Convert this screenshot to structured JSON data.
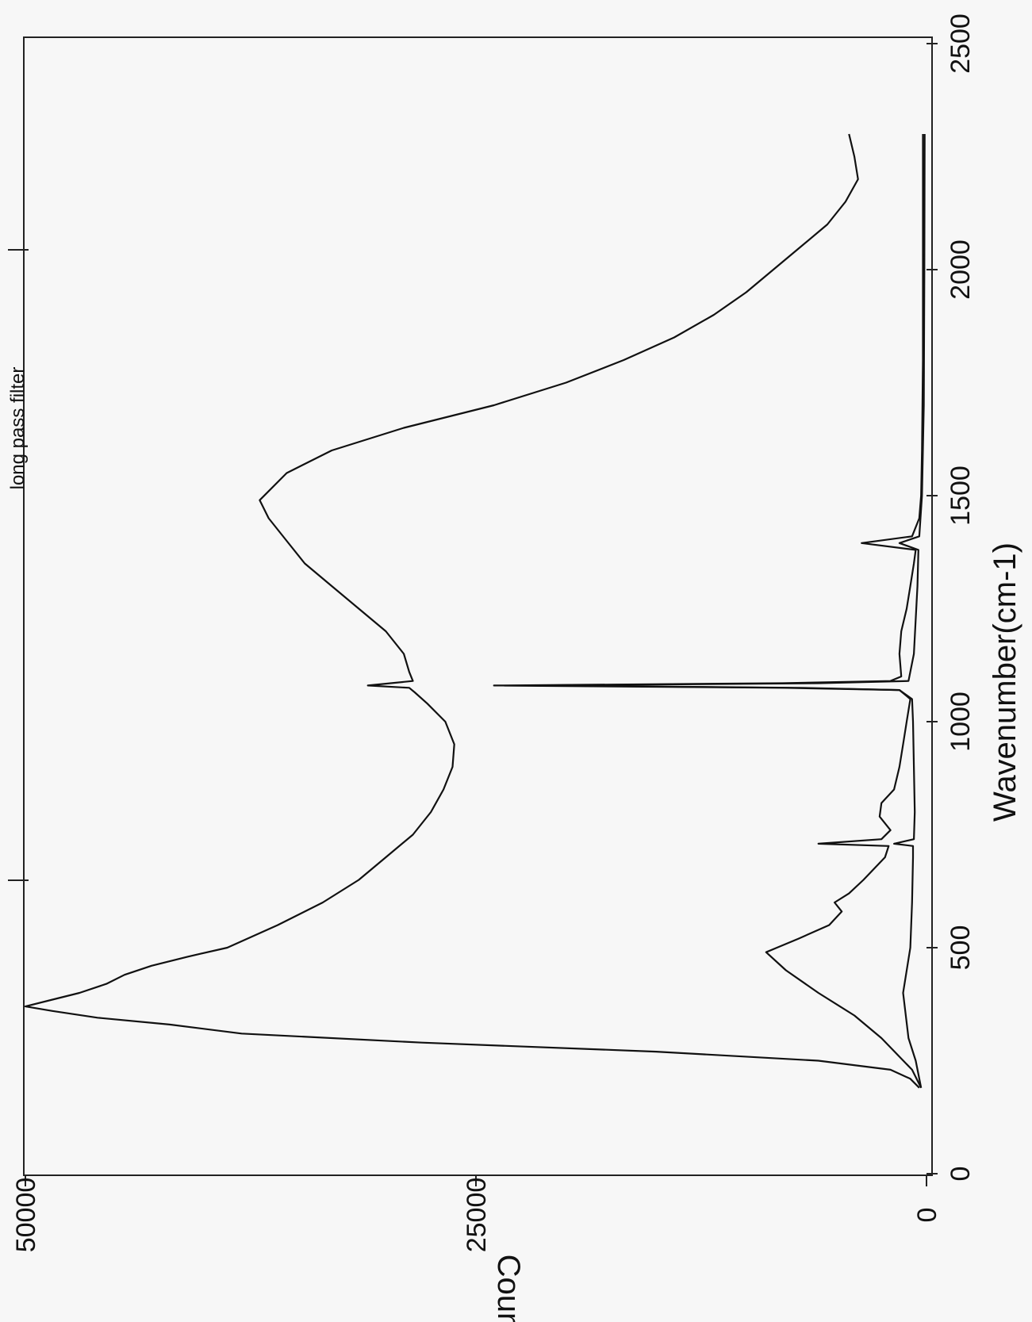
{
  "chart_data": {
    "type": "line",
    "orientation": "rotated-90",
    "xlabel": "Wavenumber(cm-1)",
    "ylabel": "Counts",
    "xlim": [
      0,
      2500
    ],
    "ylim": [
      0,
      50000
    ],
    "x_ticks": [
      "0",
      "500",
      "1000",
      "1500",
      "2000",
      "2500"
    ],
    "y_ticks": [
      "0",
      "25000",
      "50000"
    ],
    "annotations": [
      "long pass filter"
    ],
    "grid": false,
    "series": [
      {
        "points": [
          [
            190,
            400
          ],
          [
            210,
            900
          ],
          [
            230,
            2000
          ],
          [
            250,
            6000
          ],
          [
            270,
            15000
          ],
          [
            290,
            28000
          ],
          [
            310,
            38000
          ],
          [
            330,
            42000
          ],
          [
            345,
            46000
          ],
          [
            360,
            48500
          ],
          [
            370,
            50000
          ],
          [
            385,
            48500
          ],
          [
            400,
            47000
          ],
          [
            420,
            45500
          ],
          [
            440,
            44500
          ],
          [
            460,
            43000
          ],
          [
            480,
            41000
          ],
          [
            500,
            38800
          ],
          [
            550,
            36000
          ],
          [
            600,
            33500
          ],
          [
            650,
            31500
          ],
          [
            700,
            30000
          ],
          [
            750,
            28500
          ],
          [
            800,
            27500
          ],
          [
            850,
            26800
          ],
          [
            900,
            26300
          ],
          [
            950,
            26200
          ],
          [
            1000,
            26700
          ],
          [
            1040,
            27700
          ],
          [
            1065,
            28400
          ],
          [
            1075,
            28700
          ],
          [
            1080,
            31000
          ],
          [
            1090,
            28500
          ],
          [
            1110,
            28700
          ],
          [
            1150,
            29000
          ],
          [
            1200,
            30000
          ],
          [
            1250,
            31500
          ],
          [
            1300,
            33000
          ],
          [
            1350,
            34500
          ],
          [
            1400,
            35500
          ],
          [
            1450,
            36500
          ],
          [
            1490,
            37000
          ],
          [
            1550,
            35500
          ],
          [
            1600,
            33000
          ],
          [
            1650,
            29000
          ],
          [
            1700,
            24000
          ],
          [
            1750,
            20000
          ],
          [
            1800,
            16800
          ],
          [
            1850,
            14000
          ],
          [
            1900,
            11800
          ],
          [
            1950,
            10000
          ],
          [
            2000,
            8500
          ],
          [
            2050,
            7000
          ],
          [
            2100,
            5500
          ],
          [
            2150,
            4500
          ],
          [
            2200,
            3800
          ],
          [
            2250,
            4000
          ],
          [
            2300,
            4300
          ]
        ]
      },
      {
        "points": [
          [
            190,
            300
          ],
          [
            230,
            800
          ],
          [
            300,
            2500
          ],
          [
            350,
            4000
          ],
          [
            400,
            6000
          ],
          [
            450,
            7800
          ],
          [
            490,
            8900
          ],
          [
            500,
            8300
          ],
          [
            520,
            7100
          ],
          [
            550,
            5400
          ],
          [
            580,
            4700
          ],
          [
            600,
            5100
          ],
          [
            620,
            4300
          ],
          [
            650,
            3500
          ],
          [
            700,
            2300
          ],
          [
            725,
            2100
          ],
          [
            730,
            6000
          ],
          [
            740,
            2500
          ],
          [
            760,
            2000
          ],
          [
            790,
            2600
          ],
          [
            820,
            2500
          ],
          [
            850,
            1800
          ],
          [
            900,
            1500
          ],
          [
            950,
            1300
          ],
          [
            1000,
            1100
          ],
          [
            1050,
            900
          ],
          [
            1070,
            1500
          ],
          [
            1075,
            8000
          ],
          [
            1080,
            24000
          ],
          [
            1085,
            8000
          ],
          [
            1090,
            2000
          ],
          [
            1100,
            1400
          ],
          [
            1150,
            1500
          ],
          [
            1200,
            1400
          ],
          [
            1250,
            1100
          ],
          [
            1300,
            900
          ],
          [
            1350,
            700
          ],
          [
            1380,
            600
          ],
          [
            1395,
            3600
          ],
          [
            1410,
            800
          ],
          [
            1450,
            400
          ],
          [
            1500,
            300
          ],
          [
            1600,
            250
          ],
          [
            1800,
            200
          ],
          [
            2000,
            200
          ],
          [
            2200,
            200
          ],
          [
            2300,
            200
          ]
        ]
      },
      {
        "points": [
          [
            190,
            300
          ],
          [
            250,
            600
          ],
          [
            300,
            1000
          ],
          [
            400,
            1300
          ],
          [
            500,
            900
          ],
          [
            600,
            800
          ],
          [
            700,
            750
          ],
          [
            725,
            750
          ],
          [
            730,
            1800
          ],
          [
            740,
            700
          ],
          [
            800,
            650
          ],
          [
            900,
            700
          ],
          [
            1000,
            750
          ],
          [
            1050,
            800
          ],
          [
            1070,
            1500
          ],
          [
            1075,
            7000
          ],
          [
            1080,
            22000
          ],
          [
            1085,
            6000
          ],
          [
            1090,
            1000
          ],
          [
            1150,
            700
          ],
          [
            1300,
            500
          ],
          [
            1380,
            450
          ],
          [
            1395,
            1500
          ],
          [
            1410,
            400
          ],
          [
            1500,
            250
          ],
          [
            1700,
            150
          ],
          [
            2000,
            120
          ],
          [
            2300,
            100
          ]
        ]
      }
    ]
  }
}
